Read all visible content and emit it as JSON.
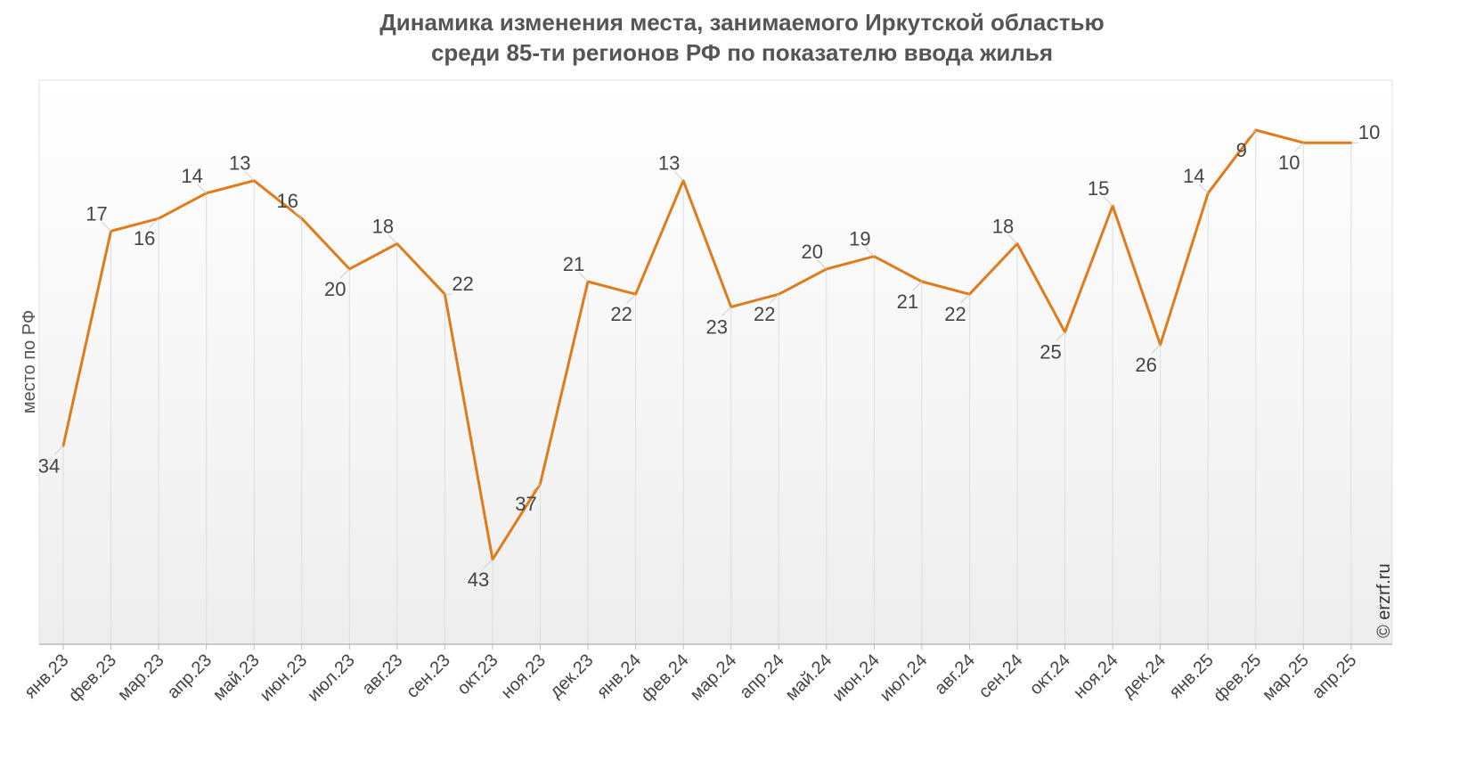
{
  "chart_data": {
    "type": "line",
    "title_lines": [
      "Динамика изменения места, занимаемого Иркутской областью",
      "среди 85-ти регионов РФ по показателю ввода жилья"
    ],
    "ylabel": "место по РФ",
    "xlabel": "",
    "y_inverted": true,
    "ylim": [
      1,
      50
    ],
    "grid": "vertical",
    "categories": [
      "янв.23",
      "фев.23",
      "мар.23",
      "апр.23",
      "май.23",
      "июн.23",
      "июл.23",
      "авг.23",
      "сен.23",
      "окт.23",
      "ноя.23",
      "дек.23",
      "янв.24",
      "фев.24",
      "мар.24",
      "апр.24",
      "май.24",
      "июн.24",
      "июл.24",
      "авг.24",
      "сен.24",
      "окт.24",
      "ноя.24",
      "дек.24",
      "янв.25",
      "фев.25",
      "мар.25",
      "апр.25"
    ],
    "series": [
      {
        "values": [
          34,
          17,
          16,
          14,
          13,
          16,
          20,
          18,
          22,
          43,
          37,
          21,
          22,
          13,
          23,
          22,
          20,
          19,
          21,
          22,
          18,
          25,
          15,
          26,
          14,
          9,
          10,
          10
        ],
        "color": "#e07b1a"
      }
    ],
    "label_side": [
      "below",
      "above",
      "below",
      "above",
      "above",
      "above",
      "below",
      "above",
      "right",
      "below",
      "below",
      "above",
      "below",
      "above",
      "below",
      "below",
      "above",
      "above",
      "below",
      "below",
      "above",
      "below",
      "above",
      "below",
      "above",
      "below",
      "below",
      "right"
    ],
    "credit": "© erzrf.ru"
  }
}
